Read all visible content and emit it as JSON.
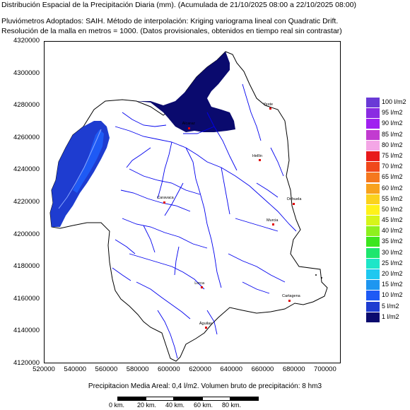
{
  "header": {
    "title": "Distribución Espacial de la Precipitación Diaria (mm). (Acumulada de 21/10/2025 08:00 a 22/10/2025 08:00)",
    "line2": "Pluviómetros Adoptados: SAIH.  Método de interpolación: Kriging variograma lineal con Quadratic Drift.",
    "line3": "Resolución de la malla en metros = 1000. (Datos provisionales, obtenidos en tiempo real sin contrastar)"
  },
  "axes": {
    "y_ticks": [
      "4320000",
      "4300000",
      "4280000",
      "4260000",
      "4240000",
      "4220000",
      "4200000",
      "4180000",
      "4160000",
      "4140000",
      "4120000"
    ],
    "x_ticks": [
      "520000",
      "540000",
      "560000",
      "580000",
      "600000",
      "620000",
      "640000",
      "660000",
      "680000",
      "700000"
    ],
    "x_range": [
      520000,
      710000
    ],
    "y_range": [
      4120000,
      4320000
    ]
  },
  "legend": [
    {
      "label": "100 l/m2",
      "color": "#6a3ad6"
    },
    {
      "label": "95 l/m2",
      "color": "#8a2be2"
    },
    {
      "label": "90 l/m2",
      "color": "#a020f0"
    },
    {
      "label": "85 l/m2",
      "color": "#c23bd0"
    },
    {
      "label": "80 l/m2",
      "color": "#f4a6e6"
    },
    {
      "label": "75 l/m2",
      "color": "#e8191b"
    },
    {
      "label": "70 l/m2",
      "color": "#f0481b"
    },
    {
      "label": "65 l/m2",
      "color": "#f5781e"
    },
    {
      "label": "60 l/m2",
      "color": "#f8a21d"
    },
    {
      "label": "55 l/m2",
      "color": "#fbd21e"
    },
    {
      "label": "50 l/m2",
      "color": "#fff21a"
    },
    {
      "label": "45 l/m2",
      "color": "#d6f51a"
    },
    {
      "label": "40 l/m2",
      "color": "#8ef01e"
    },
    {
      "label": "35 l/m2",
      "color": "#3ce61e"
    },
    {
      "label": "30 l/m2",
      "color": "#1ee66e"
    },
    {
      "label": "25 l/m2",
      "color": "#1ee6c8"
    },
    {
      "label": "20 l/m2",
      "color": "#1ec8f0"
    },
    {
      "label": "15 l/m2",
      "color": "#1e96f0"
    },
    {
      "label": "10 l/m2",
      "color": "#1e5af5"
    },
    {
      "label": "5 l/m2",
      "color": "#1e3cd0"
    },
    {
      "label": "1 l/m2",
      "color": "#0a0a6e"
    }
  ],
  "towns": [
    {
      "name": "Yeste",
      "x": 665000,
      "y": 4278000
    },
    {
      "name": "Alcaraz",
      "x": 613000,
      "y": 4266000
    },
    {
      "name": "Hellín",
      "x": 658000,
      "y": 4246000
    },
    {
      "name": "Orihuela",
      "x": 680000,
      "y": 4219000
    },
    {
      "name": "Caravaca",
      "x": 597000,
      "y": 4220000
    },
    {
      "name": "Murcia",
      "x": 667000,
      "y": 4206000
    },
    {
      "name": "Lorca",
      "x": 621000,
      "y": 4167000
    },
    {
      "name": "Cartagena",
      "x": 677000,
      "y": 4159000
    },
    {
      "name": "Águilas",
      "x": 624000,
      "y": 4142000
    }
  ],
  "footer": {
    "summary": "Precipitacion Media Areal: 0,4 l/m2. Volumen bruto de precipitación: 8 hm3"
  },
  "scalebar": {
    "labels": [
      "0 km.",
      "20 km.",
      "40 km.",
      "60 km.",
      "80 km."
    ]
  },
  "colors": {
    "rivers": "#0000ee",
    "rain_dark": "#0a0a6e",
    "rain_mid": "#1e3cd0",
    "rain_light": "#1e5af5",
    "basin_outline": "#000000"
  }
}
